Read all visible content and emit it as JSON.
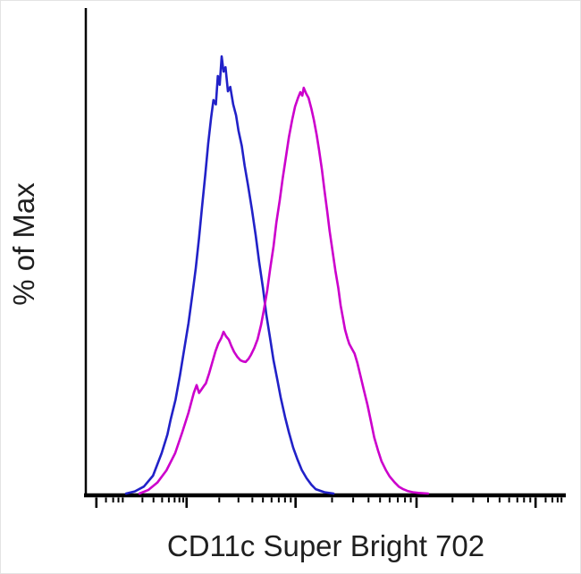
{
  "chart_data": {
    "type": "line",
    "subtype": "flow-cytometry-histogram-overlay",
    "title": "",
    "xlabel": "CD11c Super Bright 702",
    "ylabel": "% of Max",
    "grid": false,
    "legend_visible": false,
    "background_color": "#ffffff",
    "axis_color": "#000000",
    "y_axis": {
      "range_pct_of_max": [
        0,
        100
      ],
      "tick_labels_visible": false
    },
    "x_axis": {
      "scale": "biexponential-log",
      "tick_labels_visible": false,
      "major_ticks": [
        0.022,
        0.21,
        0.437,
        0.689,
        0.937
      ],
      "minor_ticks": [
        0.042,
        0.057,
        0.068,
        0.077,
        0.118,
        0.141,
        0.159,
        0.173,
        0.185,
        0.195,
        0.203,
        0.278,
        0.318,
        0.347,
        0.369,
        0.387,
        0.402,
        0.415,
        0.427,
        0.513,
        0.557,
        0.589,
        0.613,
        0.633,
        0.65,
        0.665,
        0.677,
        0.764,
        0.807,
        0.838,
        0.862,
        0.882,
        0.899,
        0.913,
        0.926,
        0.958,
        0.972,
        0.983,
        0.991
      ]
    },
    "series": [
      {
        "name": "blue-histogram",
        "color": "#2121c8",
        "points": [
          [
            0.084,
            0
          ],
          [
            0.102,
            0.5
          ],
          [
            0.121,
            1.6
          ],
          [
            0.14,
            4.1
          ],
          [
            0.158,
            9.2
          ],
          [
            0.17,
            13.5
          ],
          [
            0.177,
            17
          ],
          [
            0.187,
            21.5
          ],
          [
            0.196,
            27
          ],
          [
            0.205,
            33
          ],
          [
            0.214,
            39
          ],
          [
            0.222,
            45.5
          ],
          [
            0.229,
            51.5
          ],
          [
            0.236,
            58.5
          ],
          [
            0.242,
            65.5
          ],
          [
            0.249,
            73
          ],
          [
            0.255,
            80
          ],
          [
            0.261,
            86
          ],
          [
            0.266,
            90
          ],
          [
            0.271,
            89
          ],
          [
            0.275,
            95.5
          ],
          [
            0.279,
            93.5
          ],
          [
            0.283,
            100
          ],
          [
            0.287,
            96.5
          ],
          [
            0.291,
            97.5
          ],
          [
            0.296,
            92
          ],
          [
            0.301,
            93
          ],
          [
            0.307,
            89
          ],
          [
            0.313,
            86.5
          ],
          [
            0.318,
            83
          ],
          [
            0.325,
            79.5
          ],
          [
            0.331,
            75
          ],
          [
            0.338,
            70.5
          ],
          [
            0.346,
            65
          ],
          [
            0.354,
            59
          ],
          [
            0.361,
            53
          ],
          [
            0.369,
            47
          ],
          [
            0.376,
            41
          ],
          [
            0.384,
            35.5
          ],
          [
            0.391,
            30.5
          ],
          [
            0.399,
            26
          ],
          [
            0.406,
            22
          ],
          [
            0.415,
            17.5
          ],
          [
            0.423,
            14
          ],
          [
            0.432,
            10.5
          ],
          [
            0.441,
            7.8
          ],
          [
            0.45,
            5.4
          ],
          [
            0.46,
            3.5
          ],
          [
            0.47,
            2
          ],
          [
            0.479,
            1
          ],
          [
            0.497,
            0.3
          ],
          [
            0.516,
            0
          ]
        ]
      },
      {
        "name": "magenta-histogram",
        "color": "#cc00cc",
        "points": [
          [
            0.112,
            0
          ],
          [
            0.13,
            0.8
          ],
          [
            0.149,
            2.5
          ],
          [
            0.168,
            5.3
          ],
          [
            0.186,
            9.2
          ],
          [
            0.201,
            14
          ],
          [
            0.214,
            18.5
          ],
          [
            0.225,
            23
          ],
          [
            0.231,
            24.8
          ],
          [
            0.236,
            23
          ],
          [
            0.241,
            23.8
          ],
          [
            0.246,
            24.6
          ],
          [
            0.25,
            25.2
          ],
          [
            0.257,
            27.5
          ],
          [
            0.263,
            29.8
          ],
          [
            0.27,
            32.5
          ],
          [
            0.276,
            34.3
          ],
          [
            0.282,
            35.5
          ],
          [
            0.287,
            37
          ],
          [
            0.292,
            36
          ],
          [
            0.298,
            35.2
          ],
          [
            0.303,
            33.8
          ],
          [
            0.309,
            32.4
          ],
          [
            0.316,
            31.2
          ],
          [
            0.322,
            30.5
          ],
          [
            0.328,
            30.2
          ],
          [
            0.333,
            30.1
          ],
          [
            0.339,
            30.8
          ],
          [
            0.344,
            31.7
          ],
          [
            0.351,
            33.3
          ],
          [
            0.358,
            35.3
          ],
          [
            0.365,
            38.5
          ],
          [
            0.371,
            42
          ],
          [
            0.378,
            46.5
          ],
          [
            0.384,
            51.3
          ],
          [
            0.391,
            56.5
          ],
          [
            0.397,
            62
          ],
          [
            0.404,
            67
          ],
          [
            0.41,
            72
          ],
          [
            0.417,
            77
          ],
          [
            0.423,
            81.5
          ],
          [
            0.43,
            85.5
          ],
          [
            0.436,
            88.5
          ],
          [
            0.442,
            90.5
          ],
          [
            0.447,
            91.8
          ],
          [
            0.451,
            91
          ],
          [
            0.454,
            92.8
          ],
          [
            0.459,
            91.5
          ],
          [
            0.464,
            90.5
          ],
          [
            0.47,
            88
          ],
          [
            0.475,
            85.5
          ],
          [
            0.481,
            82
          ],
          [
            0.486,
            78.5
          ],
          [
            0.492,
            74
          ],
          [
            0.497,
            69.5
          ],
          [
            0.503,
            64.5
          ],
          [
            0.508,
            60
          ],
          [
            0.514,
            55.5
          ],
          [
            0.52,
            51
          ],
          [
            0.526,
            47
          ],
          [
            0.531,
            43
          ],
          [
            0.536,
            40
          ],
          [
            0.54,
            37.5
          ],
          [
            0.545,
            35.5
          ],
          [
            0.549,
            34.2
          ],
          [
            0.555,
            33
          ],
          [
            0.56,
            32
          ],
          [
            0.566,
            29.8
          ],
          [
            0.572,
            27
          ],
          [
            0.579,
            23.8
          ],
          [
            0.587,
            20.2
          ],
          [
            0.594,
            16.5
          ],
          [
            0.601,
            12.8
          ],
          [
            0.609,
            9.8
          ],
          [
            0.616,
            7.4
          ],
          [
            0.625,
            5.4
          ],
          [
            0.633,
            3.9
          ],
          [
            0.643,
            2.6
          ],
          [
            0.652,
            1.6
          ],
          [
            0.661,
            1
          ],
          [
            0.67,
            0.6
          ],
          [
            0.681,
            0.3
          ],
          [
            0.693,
            0.15
          ],
          [
            0.713,
            0
          ]
        ]
      }
    ]
  }
}
